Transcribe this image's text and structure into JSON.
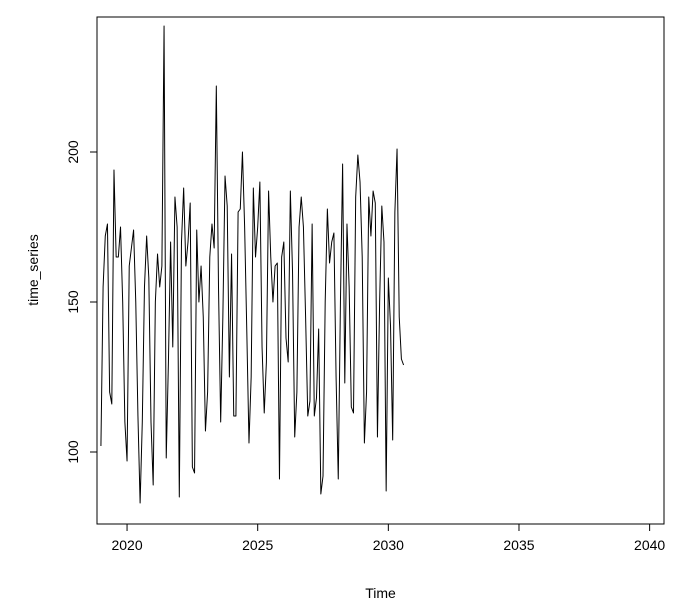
{
  "chart_data": {
    "type": "line",
    "title": "",
    "xlabel": "Time",
    "ylabel": "time_series",
    "xlim": [
      2018.85,
      2040.55
    ],
    "ylim": [
      76,
      245
    ],
    "x_ticks": [
      2020,
      2025,
      2030,
      2035,
      2040
    ],
    "y_ticks": [
      100,
      150,
      200
    ],
    "grid": false,
    "legend": "none",
    "line_color": "#000000",
    "start": 2019.0,
    "frequency": 12,
    "values": [
      102,
      155,
      172,
      176,
      120,
      116,
      194,
      165,
      165,
      175,
      150,
      110,
      97,
      162,
      168,
      174,
      150,
      112,
      83,
      110,
      155,
      172,
      158,
      110,
      89,
      150,
      166,
      155,
      162,
      242,
      98,
      130,
      170,
      135,
      185,
      175,
      85,
      170,
      188,
      162,
      170,
      183,
      95,
      93,
      174,
      150,
      162,
      145,
      107,
      120,
      165,
      176,
      168,
      222,
      155,
      110,
      145,
      192,
      182,
      125,
      166,
      112,
      112,
      180,
      181,
      200,
      175,
      140,
      103,
      125,
      188,
      165,
      175,
      190,
      135,
      113,
      130,
      187,
      165,
      150,
      162,
      163,
      91,
      165,
      170,
      138,
      130,
      187,
      160,
      105,
      120,
      175,
      185,
      175,
      145,
      112,
      117,
      176,
      112,
      118,
      141,
      86,
      92,
      150,
      181,
      163,
      170,
      173,
      125,
      91,
      150,
      196,
      123,
      176,
      155,
      115,
      113,
      185,
      199,
      190,
      165,
      103,
      120,
      185,
      172,
      187,
      183,
      105,
      150,
      182,
      170,
      87,
      158,
      142,
      104,
      180,
      201,
      145,
      131,
      129
    ]
  }
}
